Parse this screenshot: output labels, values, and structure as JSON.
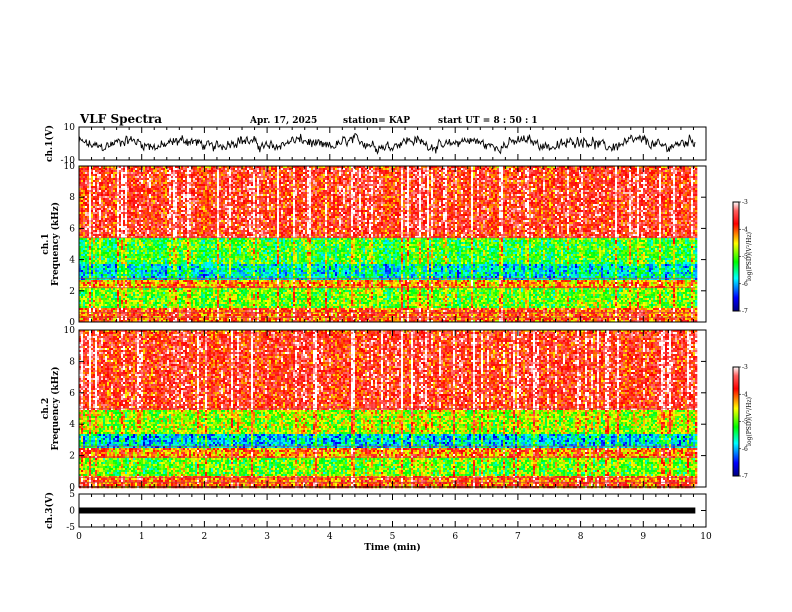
{
  "header": {
    "title": "VLF Spectra",
    "date": "Apr. 17, 2025",
    "station": "station= KAP",
    "start_ut": "start  UT =   8  : 50 : 1"
  },
  "chart_data": [
    {
      "type": "line",
      "ylabel": "ch.1(V)",
      "ylim": [
        -10,
        10
      ],
      "yticks": [
        "10",
        "-10"
      ],
      "xlim": [
        0,
        10
      ],
      "data_extent_x": [
        0,
        9.83
      ],
      "description_of_series": "noisy waveform oscillating roughly between -6 and 6 V",
      "series": [
        {
          "values_range": [
            -6,
            6
          ]
        }
      ]
    },
    {
      "type": "heatmap",
      "ylabel": "ch.1\nFrequency  (kHz)",
      "ylim": [
        0,
        10
      ],
      "yticks": [
        "0",
        "2",
        "4",
        "6",
        "8",
        "10"
      ],
      "xlim": [
        0,
        10
      ],
      "data_extent_x": [
        0,
        9.83
      ],
      "colorbar": {
        "label": "log(PSD)(V²/Hz)",
        "range": [
          -7,
          -3
        ],
        "ticks": [
          "-3",
          "-4",
          "-5",
          "-6",
          "-7"
        ]
      },
      "bands": [
        {
          "from": 0,
          "to": 0.9,
          "level": -4.0
        },
        {
          "from": 0.9,
          "to": 2.2,
          "level": -5.0
        },
        {
          "from": 2.2,
          "to": 2.8,
          "level": -4.3
        },
        {
          "from": 2.8,
          "to": 3.8,
          "level": -5.8
        },
        {
          "from": 3.8,
          "to": 5.4,
          "level": -5.2
        },
        {
          "from": 5.4,
          "to": 10,
          "level": -3.7
        }
      ]
    },
    {
      "type": "heatmap",
      "ylabel": "ch.2\nFrequency  (kHz)",
      "ylim": [
        0,
        10
      ],
      "yticks": [
        "0",
        "2",
        "4",
        "6",
        "8",
        "10"
      ],
      "xlim": [
        0,
        10
      ],
      "data_extent_x": [
        0,
        9.83
      ],
      "colorbar": {
        "label": "log(PSD)(V²/Hz)",
        "range": [
          -7,
          -3
        ],
        "ticks": [
          "-3",
          "-4",
          "-5",
          "-6",
          "-7"
        ]
      },
      "bands": [
        {
          "from": 0,
          "to": 0.8,
          "level": -4.0
        },
        {
          "from": 0.8,
          "to": 1.9,
          "level": -5.0
        },
        {
          "from": 1.9,
          "to": 2.6,
          "level": -4.2
        },
        {
          "from": 2.6,
          "to": 3.4,
          "level": -5.9
        },
        {
          "from": 3.4,
          "to": 5.0,
          "level": -4.8
        },
        {
          "from": 5.0,
          "to": 10,
          "level": -3.7
        }
      ]
    },
    {
      "type": "line",
      "ylabel": "ch.3(V)",
      "ylim": [
        -5,
        5
      ],
      "yticks": [
        "5",
        "0",
        "-5"
      ],
      "xlim": [
        0,
        10
      ],
      "xticks": [
        "0",
        "1",
        "2",
        "3",
        "4",
        "5",
        "6",
        "7",
        "8",
        "9",
        "10"
      ],
      "xlabel": "Time  (min)",
      "data_extent_x": [
        0,
        9.83
      ],
      "series": [
        {
          "constant_value": 0
        }
      ]
    }
  ]
}
